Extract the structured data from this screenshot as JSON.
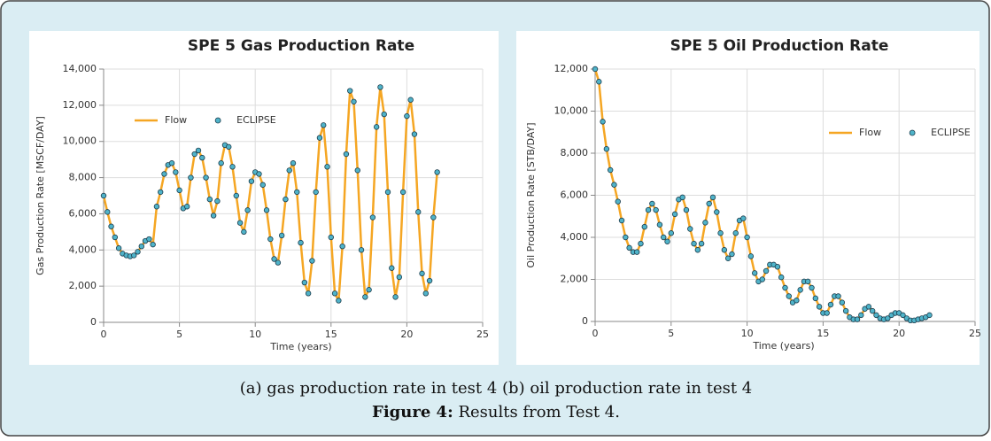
{
  "chart_data": [
    {
      "type": "line",
      "title": "SPE 5 Gas Production Rate",
      "xlabel": "Time (years)",
      "ylabel": "Gas Production Rate [MSCF/DAY]",
      "xlim": [
        0,
        25
      ],
      "xticks": [
        0,
        5,
        10,
        15,
        20,
        25
      ],
      "ylim": [
        0,
        14000
      ],
      "yticks": [
        0,
        {
          "value": 2000,
          "label": "2,000"
        },
        {
          "value": 4000,
          "label": "4,000"
        },
        {
          "value": 6000,
          "label": "6,000"
        },
        {
          "value": 8000,
          "label": "8,000"
        },
        {
          "value": 10000,
          "label": "10,000"
        },
        {
          "value": 12000,
          "label": "12,000"
        },
        {
          "value": 14000,
          "label": "14,000"
        }
      ],
      "grid": true,
      "legend": "upper left",
      "x": [
        0,
        0.25,
        0.5,
        0.75,
        1,
        1.25,
        1.5,
        1.75,
        2,
        2.25,
        2.5,
        2.75,
        3,
        3.25,
        3.5,
        3.75,
        4,
        4.25,
        4.5,
        4.75,
        5,
        5.25,
        5.5,
        5.75,
        6,
        6.25,
        6.5,
        6.75,
        7,
        7.25,
        7.5,
        7.75,
        8,
        8.25,
        8.5,
        8.75,
        9,
        9.25,
        9.5,
        9.75,
        10,
        10.25,
        10.5,
        10.75,
        11,
        11.25,
        11.5,
        11.75,
        12,
        12.25,
        12.5,
        12.75,
        13,
        13.25,
        13.5,
        13.75,
        14,
        14.25,
        14.5,
        14.75,
        15,
        15.25,
        15.5,
        15.75,
        16,
        16.25,
        16.5,
        16.75,
        17,
        17.25,
        17.5,
        17.75,
        18,
        18.25,
        18.5,
        18.75,
        19,
        19.25,
        19.5,
        19.75,
        20,
        20.25,
        20.5,
        20.75,
        21,
        21.25,
        21.5,
        21.75,
        22
      ],
      "series": [
        {
          "name": "Flow",
          "color": "#f5a623",
          "kind": "line",
          "values": [
            7000,
            6100,
            5300,
            4700,
            4100,
            3800,
            3700,
            3650,
            3700,
            3900,
            4200,
            4500,
            4600,
            4300,
            6400,
            7200,
            8200,
            8700,
            8800,
            8300,
            7300,
            6300,
            6400,
            8000,
            9300,
            9500,
            9100,
            8000,
            6800,
            5900,
            6700,
            8800,
            9800,
            9700,
            8600,
            7000,
            5500,
            5000,
            6200,
            7800,
            8300,
            8200,
            7600,
            6200,
            4600,
            3500,
            3300,
            4800,
            6800,
            8400,
            8800,
            7200,
            4400,
            2200,
            1600,
            3400,
            7200,
            10200,
            10900,
            8600,
            4700,
            1600,
            1200,
            4200,
            9300,
            12800,
            12200,
            8400,
            4000,
            1400,
            1800,
            5800,
            10800,
            13000,
            11500,
            7200,
            3000,
            1400,
            2500,
            7200,
            11400,
            12300,
            10400,
            6100,
            2700,
            1600,
            2300,
            5800,
            8300
          ]
        },
        {
          "name": "ECLIPSE",
          "color": "#4fb3c9",
          "kind": "scatter",
          "values": [
            7000,
            6100,
            5300,
            4700,
            4100,
            3800,
            3700,
            3650,
            3700,
            3900,
            4200,
            4500,
            4600,
            4300,
            6400,
            7200,
            8200,
            8700,
            8800,
            8300,
            7300,
            6300,
            6400,
            8000,
            9300,
            9500,
            9100,
            8000,
            6800,
            5900,
            6700,
            8800,
            9800,
            9700,
            8600,
            7000,
            5500,
            5000,
            6200,
            7800,
            8300,
            8200,
            7600,
            6200,
            4600,
            3500,
            3300,
            4800,
            6800,
            8400,
            8800,
            7200,
            4400,
            2200,
            1600,
            3400,
            7200,
            10200,
            10900,
            8600,
            4700,
            1600,
            1200,
            4200,
            9300,
            12800,
            12200,
            8400,
            4000,
            1400,
            1800,
            5800,
            10800,
            13000,
            11500,
            7200,
            3000,
            1400,
            2500,
            7200,
            11400,
            12300,
            10400,
            6100,
            2700,
            1600,
            2300,
            5800,
            8300
          ]
        }
      ]
    },
    {
      "type": "line",
      "title": "SPE 5 Oil Production Rate",
      "xlabel": "Time (years)",
      "ylabel": "Oil Production Rate [STB/DAY]",
      "xlim": [
        0,
        25
      ],
      "xticks": [
        0,
        5,
        10,
        15,
        20,
        25
      ],
      "ylim": [
        0,
        12000
      ],
      "yticks": [
        0,
        {
          "value": 2000,
          "label": "2,000"
        },
        {
          "value": 4000,
          "label": "4,000"
        },
        {
          "value": 6000,
          "label": "6,000"
        },
        {
          "value": 8000,
          "label": "8,000"
        },
        {
          "value": 10000,
          "label": "10,000"
        },
        {
          "value": 12000,
          "label": "12,000"
        }
      ],
      "grid": true,
      "legend": "upper right",
      "x": [
        0,
        0.25,
        0.5,
        0.75,
        1,
        1.25,
        1.5,
        1.75,
        2,
        2.25,
        2.5,
        2.75,
        3,
        3.25,
        3.5,
        3.75,
        4,
        4.25,
        4.5,
        4.75,
        5,
        5.25,
        5.5,
        5.75,
        6,
        6.25,
        6.5,
        6.75,
        7,
        7.25,
        7.5,
        7.75,
        8,
        8.25,
        8.5,
        8.75,
        9,
        9.25,
        9.5,
        9.75,
        10,
        10.25,
        10.5,
        10.75,
        11,
        11.25,
        11.5,
        11.75,
        12,
        12.25,
        12.5,
        12.75,
        13,
        13.25,
        13.5,
        13.75,
        14,
        14.25,
        14.5,
        14.75,
        15,
        15.25,
        15.5,
        15.75,
        16,
        16.25,
        16.5,
        16.75,
        17,
        17.25,
        17.5,
        17.75,
        18,
        18.25,
        18.5,
        18.75,
        19,
        19.25,
        19.5,
        19.75,
        20,
        20.25,
        20.5,
        20.75,
        21,
        21.25,
        21.5,
        21.75,
        22
      ],
      "series": [
        {
          "name": "Flow",
          "color": "#f5a623",
          "kind": "line",
          "values": [
            12000,
            11400,
            9500,
            8200,
            7200,
            6500,
            5700,
            4800,
            4000,
            3500,
            3300,
            3300,
            3700,
            4500,
            5300,
            5600,
            5300,
            4600,
            4000,
            3800,
            4200,
            5100,
            5800,
            5900,
            5300,
            4400,
            3700,
            3400,
            3700,
            4700,
            5600,
            5900,
            5200,
            4200,
            3400,
            3000,
            3200,
            4200,
            4800,
            4900,
            4000,
            3100,
            2300,
            1900,
            2000,
            2400,
            2700,
            2700,
            2600,
            2100,
            1600,
            1200,
            900,
            1000,
            1500,
            1900,
            1900,
            1600,
            1100,
            700,
            400,
            400,
            800,
            1200,
            1200,
            900,
            500,
            200,
            100,
            100,
            300,
            600,
            700,
            500,
            300,
            150,
            100,
            150,
            300,
            400,
            400,
            300,
            150,
            50,
            50,
            100,
            150,
            200,
            300
          ]
        },
        {
          "name": "ECLIPSE",
          "color": "#4fb3c9",
          "kind": "scatter",
          "values": [
            12000,
            11400,
            9500,
            8200,
            7200,
            6500,
            5700,
            4800,
            4000,
            3500,
            3300,
            3300,
            3700,
            4500,
            5300,
            5600,
            5300,
            4600,
            4000,
            3800,
            4200,
            5100,
            5800,
            5900,
            5300,
            4400,
            3700,
            3400,
            3700,
            4700,
            5600,
            5900,
            5200,
            4200,
            3400,
            3000,
            3200,
            4200,
            4800,
            4900,
            4000,
            3100,
            2300,
            1900,
            2000,
            2400,
            2700,
            2700,
            2600,
            2100,
            1600,
            1200,
            900,
            1000,
            1500,
            1900,
            1900,
            1600,
            1100,
            700,
            400,
            400,
            800,
            1200,
            1200,
            900,
            500,
            200,
            100,
            100,
            300,
            600,
            700,
            500,
            300,
            150,
            100,
            150,
            300,
            400,
            400,
            300,
            150,
            50,
            50,
            100,
            150,
            200,
            300
          ]
        }
      ]
    }
  ],
  "caption": {
    "line1": "(a) gas production rate in test 4 (b) oil production rate in test 4",
    "label": "Figure 4:",
    "text": " Results from Test 4."
  }
}
